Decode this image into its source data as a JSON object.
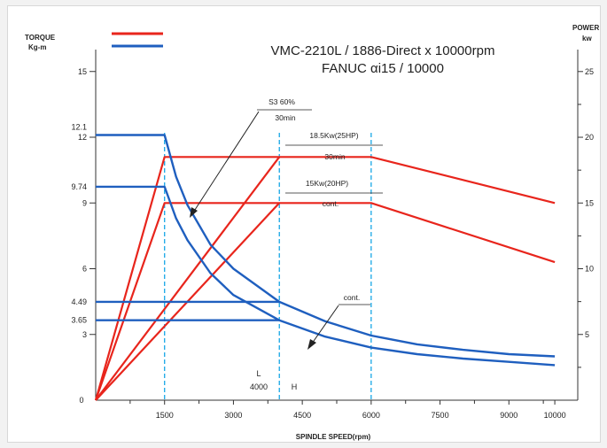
{
  "chart_data": {
    "type": "line",
    "title_line1": "VMC-2210L / 1886-Direct x 10000rpm",
    "title_line2": "FANUC αi15 / 10000",
    "left_axis": {
      "label_line1": "TORQUE",
      "label_line2": "Kg-m",
      "range": [
        0,
        16
      ]
    },
    "right_axis": {
      "label_line1": "POWER",
      "label_line2": "kw",
      "range": [
        0,
        26.67
      ]
    },
    "x_axis": {
      "label": "SPINDLE SPEED(rpm)",
      "range": [
        0,
        10500
      ]
    },
    "x_ticks": [
      1500,
      3000,
      4500,
      6000,
      7500,
      9000,
      10000
    ],
    "x_minor_ticks": [
      750,
      2250,
      3750,
      5250,
      6750,
      8250,
      9750
    ],
    "x_zero_label": "0",
    "left_ticks": [
      {
        "label": "15",
        "value": 15
      },
      {
        "label": "12",
        "value": 12
      },
      {
        "label": "9",
        "value": 9
      },
      {
        "label": "6",
        "value": 6
      },
      {
        "label": "3",
        "value": 3
      }
    ],
    "left_extra_labels": [
      {
        "label": "12.1",
        "value": 12.1
      },
      {
        "label": "9.74",
        "value": 9.74
      },
      {
        "label": "4.49",
        "value": 4.49
      },
      {
        "label": "3.65",
        "value": 3.65
      }
    ],
    "right_ticks": [
      {
        "label": "25",
        "value": 25
      },
      {
        "label": "20",
        "value": 20
      },
      {
        "label": "15",
        "value": 15
      },
      {
        "label": "10",
        "value": 10
      },
      {
        "label": "5",
        "value": 5
      }
    ],
    "right_minor_ticks": [
      2.5,
      7.5,
      12.5,
      17.5,
      22.5
    ],
    "legend": [
      {
        "color": "#e8251c",
        "label": ""
      },
      {
        "color": "#1f5fbf",
        "label": ""
      }
    ],
    "vertical_markers": [
      1500,
      4000,
      6000
    ],
    "marker_labels": {
      "l": "L",
      "l_speed": "4000",
      "h": "H"
    },
    "power_series": [
      {
        "name": "18.5Kw(25HP) 30min",
        "x": [
          0,
          1500,
          6000,
          10000
        ],
        "y": [
          0,
          18.5,
          18.5,
          15
        ]
      },
      {
        "name": "15Kw(20HP) cont.",
        "x": [
          0,
          1500,
          6000,
          10000
        ],
        "y": [
          0,
          15,
          15,
          10.5
        ]
      },
      {
        "name": "L 30min",
        "x": [
          0,
          4000
        ],
        "y": [
          0,
          18.5
        ]
      },
      {
        "name": "L cont.",
        "x": [
          0,
          4000
        ],
        "y": [
          0,
          15
        ]
      }
    ],
    "torque_series": [
      {
        "name": "S3 60% 30min",
        "x": [
          0,
          1500,
          1750,
          2000,
          2500,
          3000,
          4000,
          5000,
          6000,
          7000,
          8000,
          9000,
          10000
        ],
        "y": [
          12.1,
          12.1,
          10.2,
          8.9,
          7.1,
          6.0,
          4.49,
          3.6,
          2.95,
          2.55,
          2.3,
          2.1,
          2.0
        ]
      },
      {
        "name": "cont.",
        "x": [
          0,
          1500,
          1750,
          2000,
          2500,
          3000,
          4000,
          5000,
          6000,
          7000,
          8000,
          9000,
          10000
        ],
        "y": [
          9.74,
          9.74,
          8.3,
          7.3,
          5.8,
          4.8,
          3.65,
          2.9,
          2.4,
          2.1,
          1.9,
          1.75,
          1.6
        ]
      },
      {
        "name": "L 30min",
        "x": [
          0,
          4000
        ],
        "y": [
          4.49,
          4.49
        ]
      },
      {
        "name": "L cont.",
        "x": [
          0,
          4000
        ],
        "y": [
          3.65,
          3.65
        ]
      }
    ],
    "annotations": {
      "s3_line1": "S3 60%",
      "s3_line2": "30min",
      "p30_line1": "18.5Kw(25HP)",
      "p30_line2": "30min",
      "pcont_line1": "15Kw(20HP)",
      "pcont_line2": "cont.",
      "torque_cont": "cont."
    },
    "colors": {
      "power": "#e8251c",
      "torque": "#1f5fbf",
      "marker": "#17a7e6"
    },
    "grid": false
  }
}
